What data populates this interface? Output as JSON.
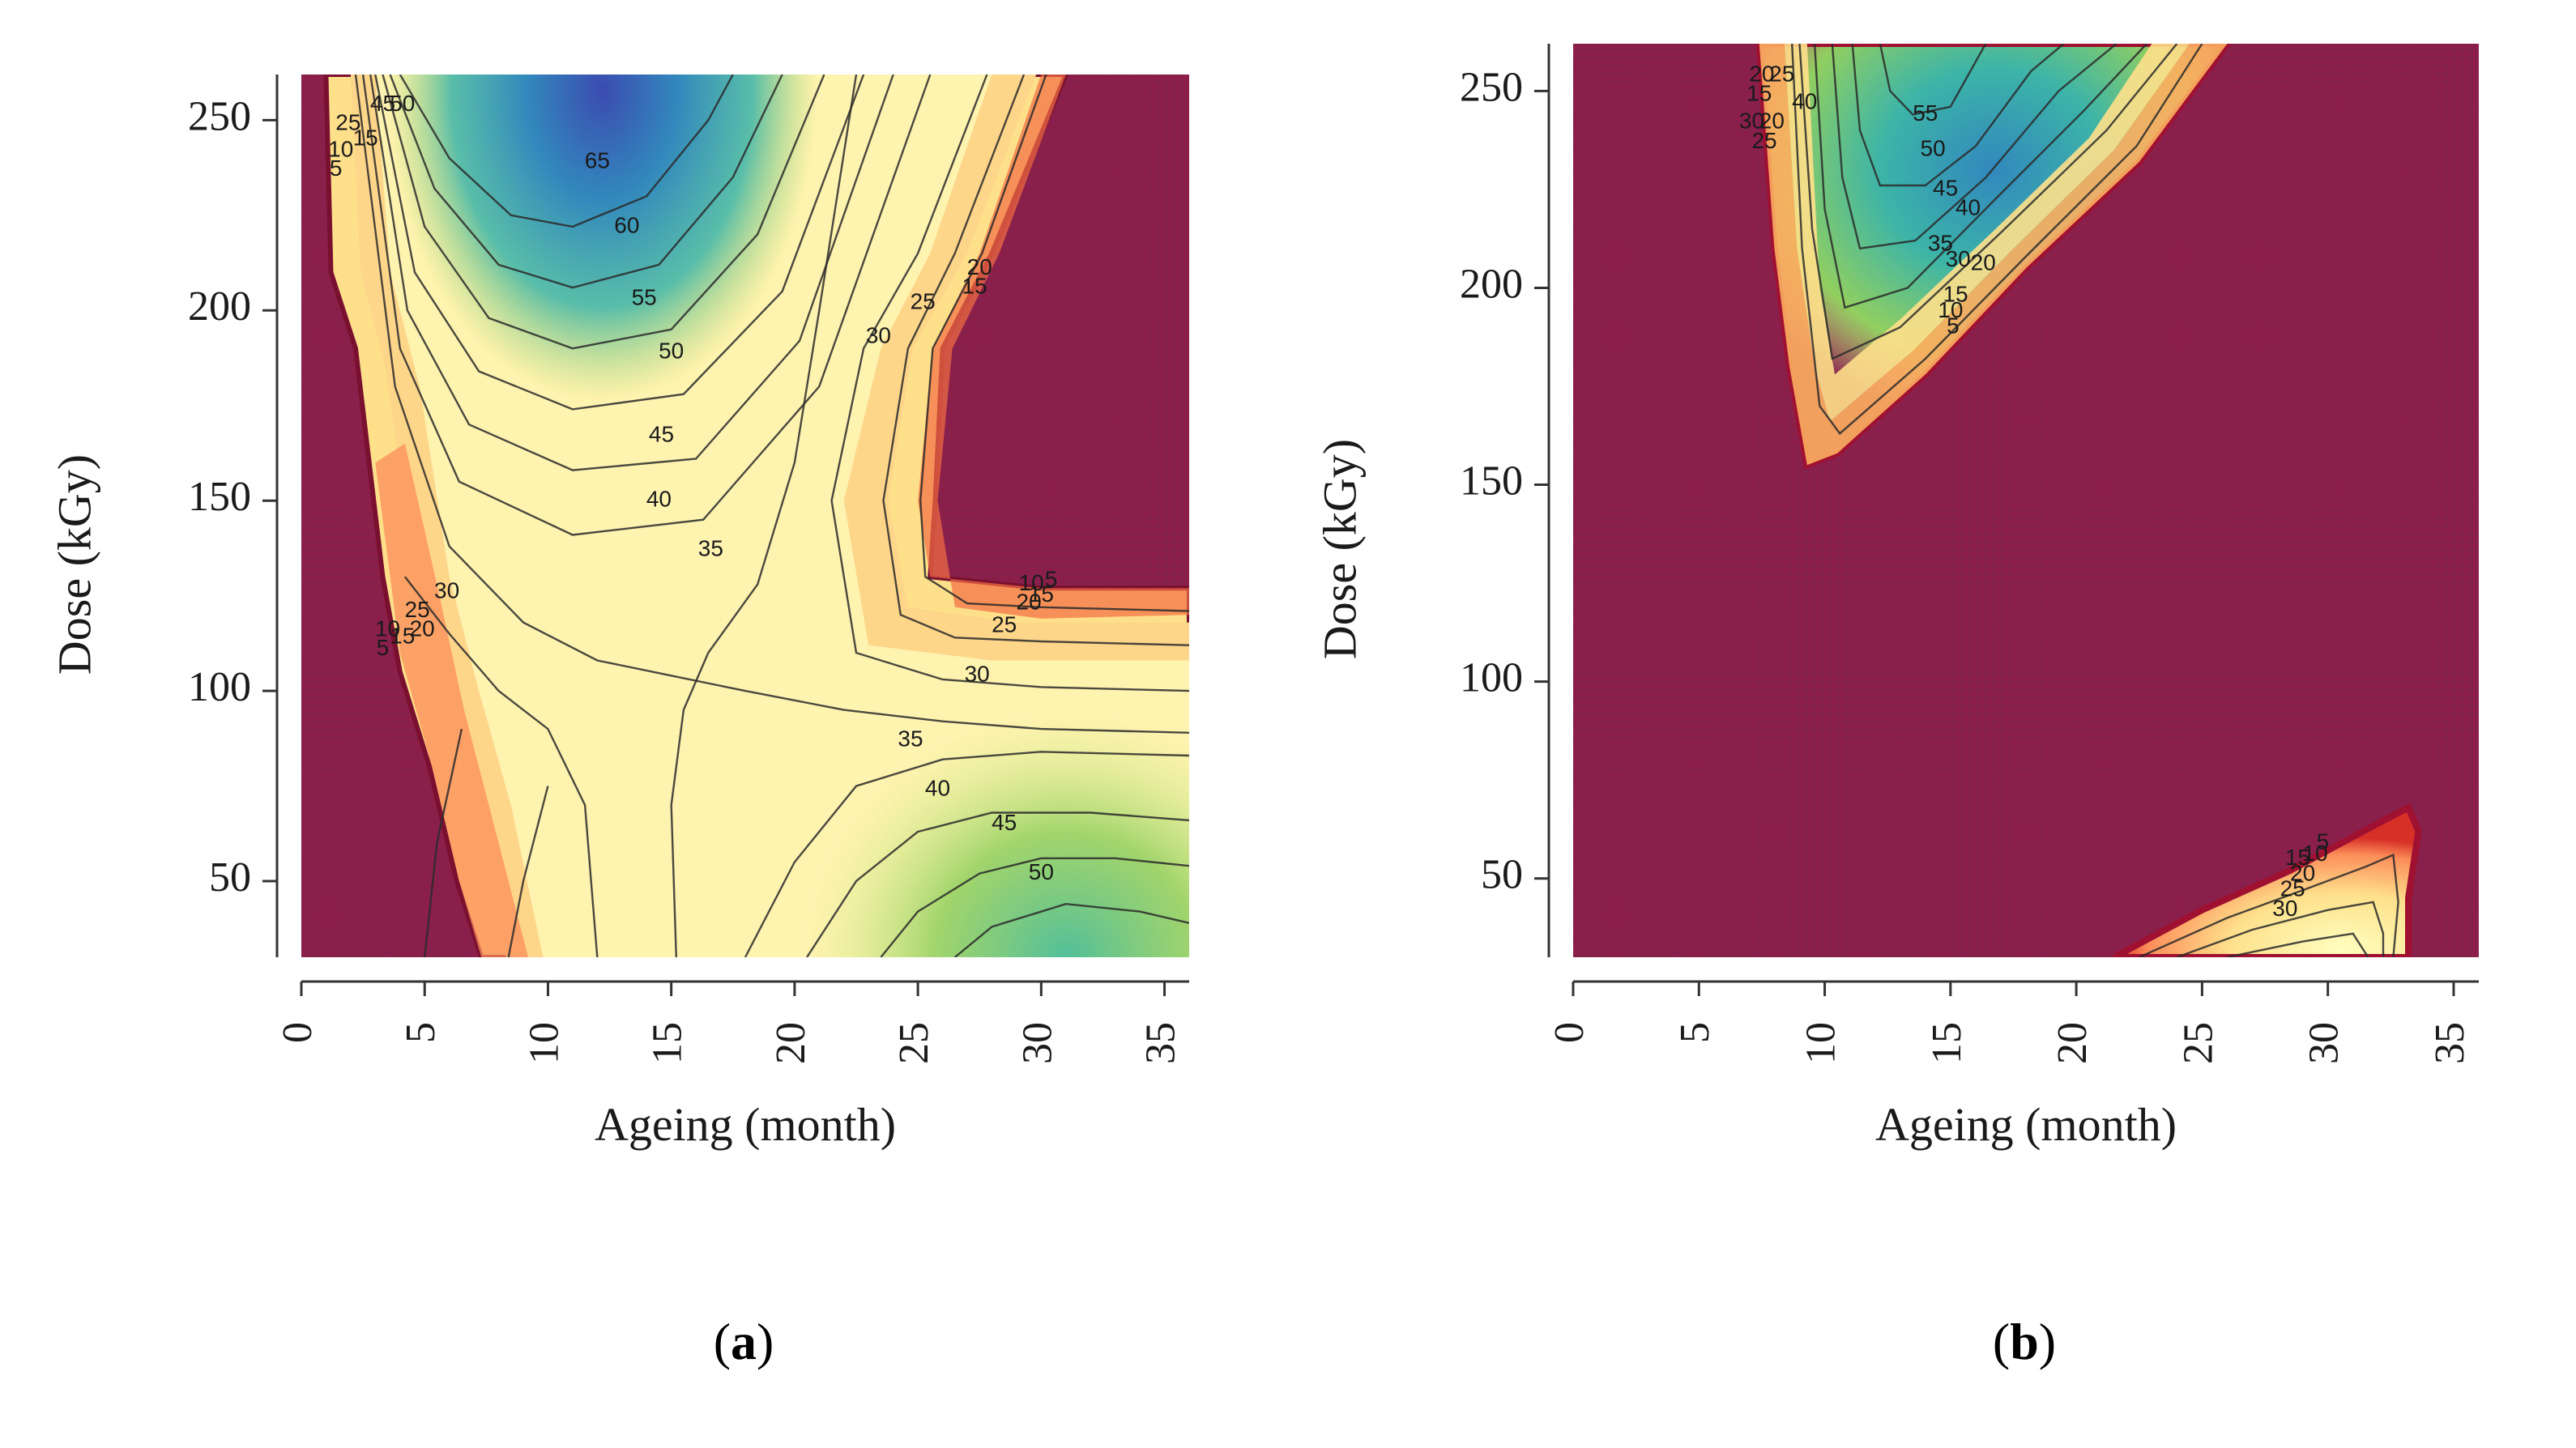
{
  "chart_data": [
    {
      "type": "heatmap",
      "panel": "a",
      "caption_open": "(",
      "caption_letter": "a",
      "caption_close": ")",
      "xlabel": "Ageing (month)",
      "ylabel": "Dose (kGy)",
      "xlim": [
        0,
        36
      ],
      "ylim": [
        30,
        262
      ],
      "x_ticks": [
        0,
        5,
        10,
        15,
        20,
        25,
        30,
        35
      ],
      "y_ticks": [
        50,
        100,
        150,
        200,
        250
      ],
      "background_color": "#8b1f4a",
      "colormap": [
        "#8b1f4a",
        "#d73027",
        "#fc8d59",
        "#fee08b",
        "#ffffbf",
        "#d9ef8b",
        "#91cf60",
        "#3cb4a8",
        "#3288bd",
        "#3b4cb0"
      ],
      "contour_labels": [
        {
          "text": "65",
          "x": 12.0,
          "y": 239
        },
        {
          "text": "60",
          "x": 13.2,
          "y": 222
        },
        {
          "text": "55",
          "x": 13.9,
          "y": 203
        },
        {
          "text": "50",
          "x": 15.0,
          "y": 189
        },
        {
          "text": "45",
          "x": 14.6,
          "y": 167
        },
        {
          "text": "40",
          "x": 14.5,
          "y": 150
        },
        {
          "text": "35",
          "x": 16.6,
          "y": 137
        },
        {
          "text": "30",
          "x": 23.4,
          "y": 193
        },
        {
          "text": "25",
          "x": 25.2,
          "y": 202
        },
        {
          "text": "20",
          "x": 27.5,
          "y": 211
        },
        {
          "text": "15",
          "x": 27.3,
          "y": 206
        },
        {
          "text": "30",
          "x": 5.9,
          "y": 126
        },
        {
          "text": "25",
          "x": 4.7,
          "y": 121
        },
        {
          "text": "20",
          "x": 4.9,
          "y": 116
        },
        {
          "text": "15",
          "x": 4.1,
          "y": 114
        },
        {
          "text": "10",
          "x": 3.5,
          "y": 116
        },
        {
          "text": "5",
          "x": 3.3,
          "y": 111
        },
        {
          "text": "45",
          "x": 3.3,
          "y": 254
        },
        {
          "text": "50",
          "x": 4.1,
          "y": 254
        },
        {
          "text": "25",
          "x": 1.9,
          "y": 249
        },
        {
          "text": "15",
          "x": 2.6,
          "y": 245
        },
        {
          "text": "10",
          "x": 1.6,
          "y": 242
        },
        {
          "text": "5",
          "x": 1.4,
          "y": 237
        },
        {
          "text": "10",
          "x": 29.6,
          "y": 128
        },
        {
          "text": "5",
          "x": 30.4,
          "y": 129
        },
        {
          "text": "15",
          "x": 30.0,
          "y": 125
        },
        {
          "text": "20",
          "x": 29.5,
          "y": 123
        },
        {
          "text": "25",
          "x": 28.5,
          "y": 117
        },
        {
          "text": "30",
          "x": 27.4,
          "y": 104
        },
        {
          "text": "35",
          "x": 24.7,
          "y": 87
        },
        {
          "text": "40",
          "x": 25.8,
          "y": 74
        },
        {
          "text": "45",
          "x": 28.5,
          "y": 65
        },
        {
          "text": "50",
          "x": 30.0,
          "y": 52
        }
      ]
    },
    {
      "type": "heatmap",
      "panel": "b",
      "caption_open": "(",
      "caption_letter": "b",
      "caption_close": ")",
      "xlabel": "Ageing (month)",
      "ylabel": "Dose (kGy)",
      "xlim": [
        0,
        36
      ],
      "ylim": [
        30,
        262
      ],
      "x_ticks": [
        0,
        5,
        10,
        15,
        20,
        25,
        30,
        35
      ],
      "y_ticks": [
        50,
        100,
        150,
        200,
        250
      ],
      "background_color": "#8b1f4a",
      "colormap": [
        "#8b1f4a",
        "#d73027",
        "#fc8d59",
        "#fee08b",
        "#ffffbf",
        "#d9ef8b",
        "#91cf60",
        "#3cb4a8",
        "#3288bd",
        "#3b4cb0"
      ],
      "contour_labels": [
        {
          "text": "55",
          "x": 14.0,
          "y": 244
        },
        {
          "text": "50",
          "x": 14.3,
          "y": 235
        },
        {
          "text": "45",
          "x": 14.8,
          "y": 225
        },
        {
          "text": "40",
          "x": 15.7,
          "y": 220
        },
        {
          "text": "35",
          "x": 14.6,
          "y": 211
        },
        {
          "text": "30",
          "x": 15.3,
          "y": 207
        },
        {
          "text": "20",
          "x": 16.3,
          "y": 206
        },
        {
          "text": "15",
          "x": 15.2,
          "y": 198
        },
        {
          "text": "10",
          "x": 15.0,
          "y": 194
        },
        {
          "text": "5",
          "x": 15.1,
          "y": 190
        },
        {
          "text": "20",
          "x": 7.5,
          "y": 254
        },
        {
          "text": "25",
          "x": 8.3,
          "y": 254
        },
        {
          "text": "15",
          "x": 7.4,
          "y": 249
        },
        {
          "text": "40",
          "x": 9.2,
          "y": 247
        },
        {
          "text": "30",
          "x": 7.1,
          "y": 242
        },
        {
          "text": "20",
          "x": 7.9,
          "y": 242
        },
        {
          "text": "25",
          "x": 7.6,
          "y": 237
        },
        {
          "text": "5",
          "x": 29.8,
          "y": 59
        },
        {
          "text": "15",
          "x": 28.8,
          "y": 55
        },
        {
          "text": "10",
          "x": 29.5,
          "y": 56
        },
        {
          "text": "20",
          "x": 29.0,
          "y": 51
        },
        {
          "text": "25",
          "x": 28.6,
          "y": 47
        },
        {
          "text": "30",
          "x": 28.3,
          "y": 42
        }
      ]
    }
  ]
}
